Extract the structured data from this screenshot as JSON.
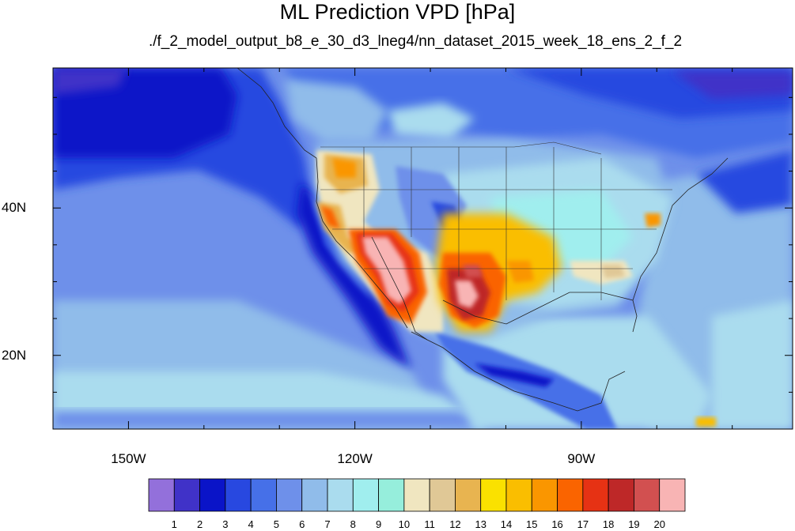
{
  "title": "ML Prediction VPD [hPa]",
  "subtitle": "./f_2_model_output_b8_e_30_d3_lneg4/nn_dataset_2015_week_18_ens_2_f_2",
  "map": {
    "lon_range": [
      -160,
      -62
    ],
    "lat_range": [
      10,
      59
    ],
    "lon_labels": [
      {
        "lon": -150,
        "text": "150W"
      },
      {
        "lon": -120,
        "text": "120W"
      },
      {
        "lon": -90,
        "text": "90W"
      }
    ],
    "lat_labels": [
      {
        "lat": 40,
        "text": "40N"
      },
      {
        "lat": 20,
        "text": "20N"
      }
    ]
  },
  "colorbar": {
    "levels": [
      "1",
      "2",
      "3",
      "4",
      "5",
      "6",
      "7",
      "8",
      "9",
      "10",
      "11",
      "12",
      "13",
      "14",
      "15",
      "16",
      "17",
      "18",
      "19",
      "20"
    ],
    "colors": [
      "#9370db",
      "#4032c8",
      "#0a14c8",
      "#2848e0",
      "#4670e8",
      "#6e90ea",
      "#90bcea",
      "#aadcee",
      "#a0eeee",
      "#96eedc",
      "#f0e6c0",
      "#e0c896",
      "#e8b450",
      "#fae100",
      "#fabe00",
      "#fa9600",
      "#fa6400",
      "#e63214",
      "#be2828",
      "#d25050",
      "#f8b4b4"
    ]
  }
}
